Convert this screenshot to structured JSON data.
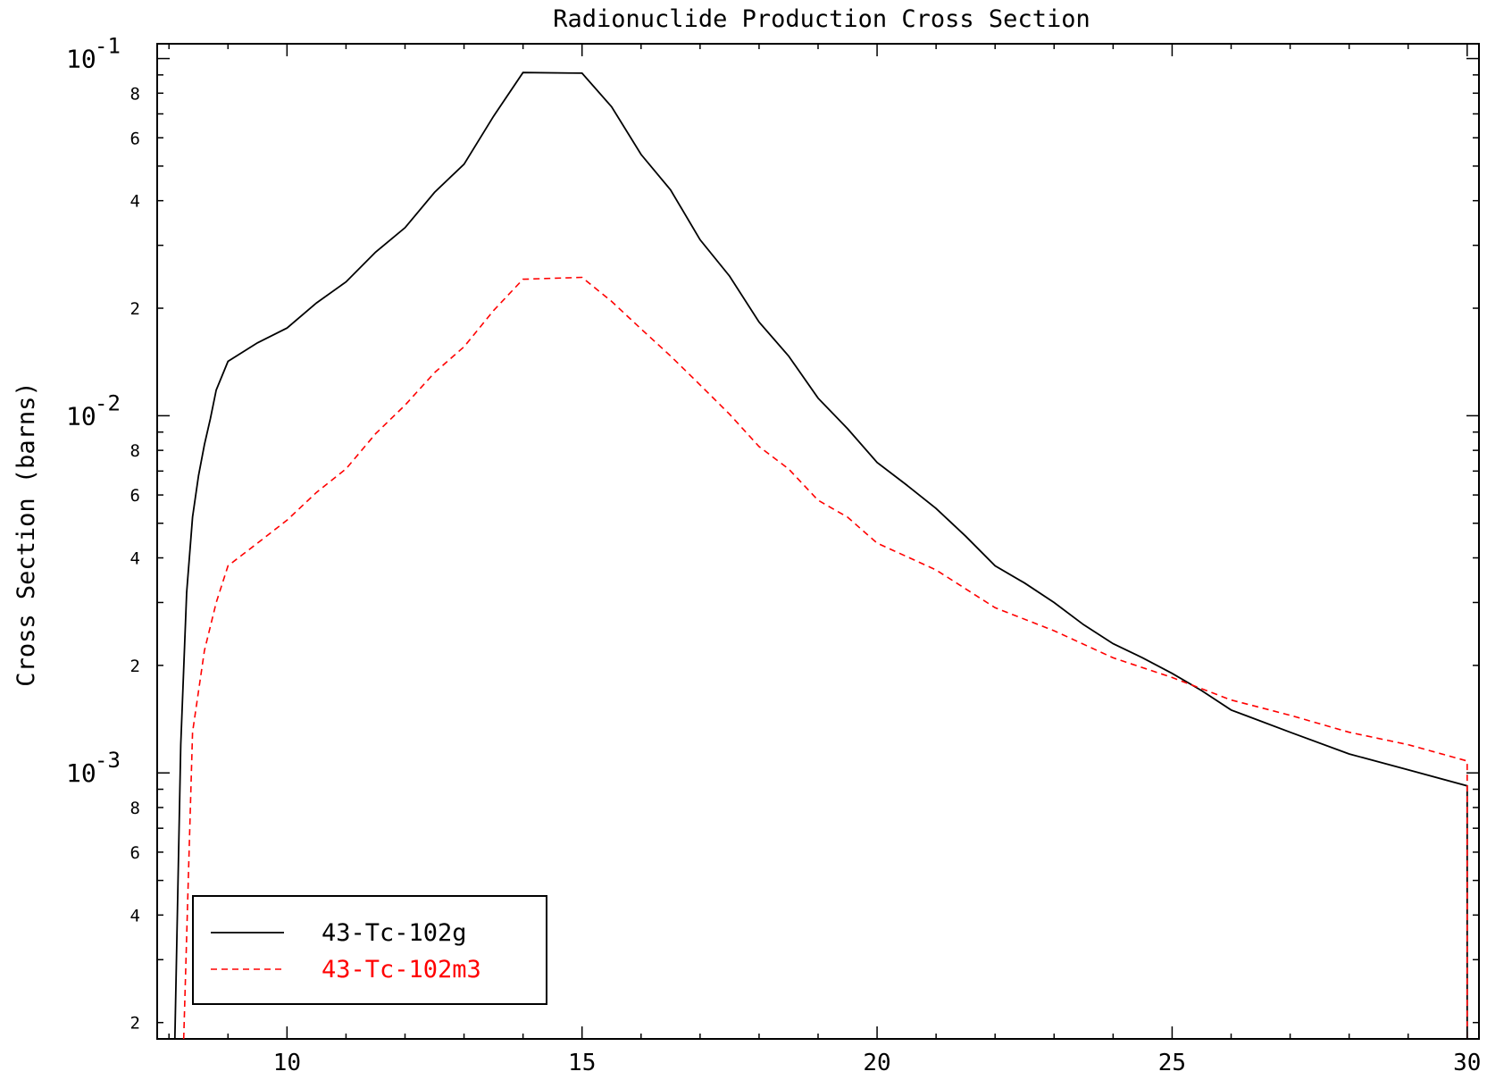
{
  "chart_data": {
    "type": "line",
    "title": "Radionuclide Production Cross Section",
    "xlabel": "",
    "ylabel": "Cross Section (barns)",
    "xlim": [
      7.8,
      30.2
    ],
    "ylim": [
      0.00018,
      0.11
    ],
    "yscale": "log",
    "grid": false,
    "legend_position": "bottom-left",
    "x_ticks": [
      10,
      15,
      20,
      25,
      30
    ],
    "x_tick_labels": [
      "10",
      "15",
      "20",
      "25",
      "30"
    ],
    "y_decades": [
      {
        "value": 0.1,
        "base": "10",
        "exp": "-1"
      },
      {
        "value": 0.01,
        "base": "10",
        "exp": "-2"
      },
      {
        "value": 0.001,
        "base": "10",
        "exp": "-3"
      }
    ],
    "y_minor_labels": [
      {
        "value": 0.08,
        "label": "8"
      },
      {
        "value": 0.06,
        "label": "6"
      },
      {
        "value": 0.04,
        "label": "4"
      },
      {
        "value": 0.02,
        "label": "2"
      },
      {
        "value": 0.008,
        "label": "8"
      },
      {
        "value": 0.006,
        "label": "6"
      },
      {
        "value": 0.004,
        "label": "4"
      },
      {
        "value": 0.002,
        "label": "2"
      },
      {
        "value": 0.0008,
        "label": "8"
      },
      {
        "value": 0.0006,
        "label": "6"
      },
      {
        "value": 0.0004,
        "label": "4"
      },
      {
        "value": 0.0002,
        "label": "2"
      }
    ],
    "series": [
      {
        "name": "43-Tc-102g",
        "color": "#000000",
        "dash": "solid",
        "points": [
          [
            8.1,
            0.00018
          ],
          [
            8.2,
            0.0012
          ],
          [
            8.3,
            0.0032
          ],
          [
            8.4,
            0.0052
          ],
          [
            8.5,
            0.0068
          ],
          [
            8.6,
            0.0083
          ],
          [
            8.7,
            0.0098
          ],
          [
            8.8,
            0.0118
          ],
          [
            9.0,
            0.0142
          ],
          [
            9.5,
            0.016
          ],
          [
            10,
            0.0176
          ],
          [
            10.5,
            0.0207
          ],
          [
            11,
            0.0237
          ],
          [
            11.5,
            0.0287
          ],
          [
            12,
            0.0336
          ],
          [
            12.5,
            0.0422
          ],
          [
            13,
            0.0506
          ],
          [
            13.5,
            0.0689
          ],
          [
            14,
            0.0914
          ],
          [
            15,
            0.091
          ],
          [
            15.5,
            0.0733
          ],
          [
            16,
            0.0539
          ],
          [
            16.5,
            0.0429
          ],
          [
            17,
            0.0311
          ],
          [
            17.5,
            0.0246
          ],
          [
            18,
            0.0183
          ],
          [
            18.5,
            0.0147
          ],
          [
            19,
            0.0112
          ],
          [
            19.5,
            0.0092
          ],
          [
            20,
            0.0074
          ],
          [
            20.5,
            0.0064
          ],
          [
            21,
            0.0055
          ],
          [
            21.5,
            0.0046
          ],
          [
            22,
            0.0038
          ],
          [
            22.5,
            0.0034
          ],
          [
            23,
            0.003
          ],
          [
            23.5,
            0.0026
          ],
          [
            24,
            0.0023
          ],
          [
            24.5,
            0.0021
          ],
          [
            25,
            0.0019
          ],
          [
            25.5,
            0.0017
          ],
          [
            26,
            0.0015
          ],
          [
            27,
            0.0013
          ],
          [
            28,
            0.00113
          ],
          [
            29,
            0.00102
          ],
          [
            30,
            0.00092
          ],
          [
            30,
            0.00018
          ]
        ]
      },
      {
        "name": "43-Tc-102m3",
        "color": "#ff0000",
        "dash": "dashed",
        "points": [
          [
            8.25,
            0.00018
          ],
          [
            8.4,
            0.0013
          ],
          [
            8.6,
            0.0022
          ],
          [
            8.8,
            0.003
          ],
          [
            9.0,
            0.0038
          ],
          [
            9.5,
            0.0044
          ],
          [
            10,
            0.0051
          ],
          [
            10.5,
            0.0061
          ],
          [
            11,
            0.0071
          ],
          [
            11.5,
            0.0089
          ],
          [
            12,
            0.0107
          ],
          [
            12.5,
            0.0132
          ],
          [
            13,
            0.0156
          ],
          [
            13.5,
            0.0197
          ],
          [
            14,
            0.0241
          ],
          [
            15,
            0.0244
          ],
          [
            15.5,
            0.0209
          ],
          [
            16,
            0.0175
          ],
          [
            16.5,
            0.0147
          ],
          [
            17,
            0.0122
          ],
          [
            17.5,
            0.0101
          ],
          [
            18,
            0.0082
          ],
          [
            18.5,
            0.0071
          ],
          [
            19,
            0.0058
          ],
          [
            19.5,
            0.0052
          ],
          [
            20,
            0.0044
          ],
          [
            21,
            0.0037
          ],
          [
            22,
            0.0029
          ],
          [
            23,
            0.0025
          ],
          [
            24,
            0.0021
          ],
          [
            25,
            0.00185
          ],
          [
            26,
            0.0016
          ],
          [
            27,
            0.00145
          ],
          [
            28,
            0.0013
          ],
          [
            29,
            0.0012
          ],
          [
            30,
            0.00108
          ],
          [
            30,
            0.00018
          ]
        ]
      }
    ]
  }
}
